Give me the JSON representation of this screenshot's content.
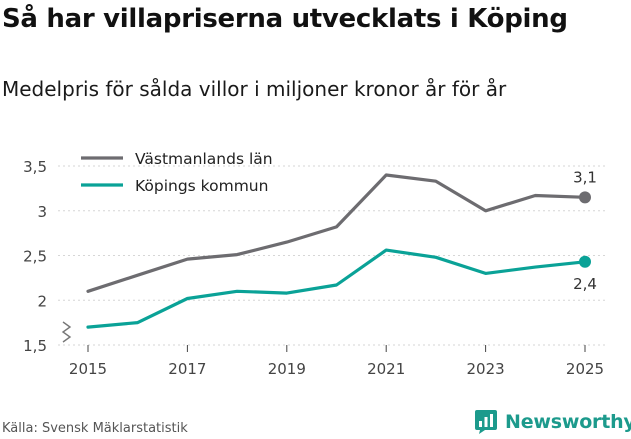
{
  "title": "Så har villapriserna utvecklats i Köping",
  "subtitle": "Medelpris för sålda villor i miljoner kronor år för år",
  "source": "Källa: Svensk Mäklarstatistik",
  "brand": {
    "name": "Newsworthy",
    "icon": "newsworthy-logo-icon",
    "color": "#1c9a8c"
  },
  "chart_data": {
    "type": "line",
    "title": "",
    "xlabel": "",
    "ylabel": "",
    "x": [
      2015,
      2016,
      2017,
      2018,
      2019,
      2020,
      2021,
      2022,
      2023,
      2024,
      2025
    ],
    "xticks": [
      2015,
      2017,
      2019,
      2021,
      2023,
      2025
    ],
    "xtick_labels": [
      "2015",
      "2017",
      "2019",
      "2021",
      "2023",
      "2025"
    ],
    "yticks": [
      1.5,
      2,
      2.5,
      3,
      3.5
    ],
    "ytick_labels": [
      "1,5",
      "2",
      "2,5",
      "3",
      "3,5"
    ],
    "ylim": [
      1.5,
      3.5
    ],
    "axis_break": true,
    "legend_position": "top-left",
    "series": [
      {
        "name": "Västmanlands län",
        "color": "#6d6c70",
        "values": [
          2.1,
          2.28,
          2.46,
          2.51,
          2.65,
          2.82,
          3.4,
          3.33,
          3.0,
          3.17,
          3.15
        ],
        "end_label": "3,1",
        "end_label_position": "above"
      },
      {
        "name": "Köpings kommun",
        "color": "#0aa297",
        "values": [
          1.7,
          1.75,
          2.02,
          2.1,
          2.08,
          2.17,
          2.56,
          2.48,
          2.3,
          2.37,
          2.43
        ],
        "end_label": "2,4",
        "end_label_position": "below"
      }
    ]
  }
}
